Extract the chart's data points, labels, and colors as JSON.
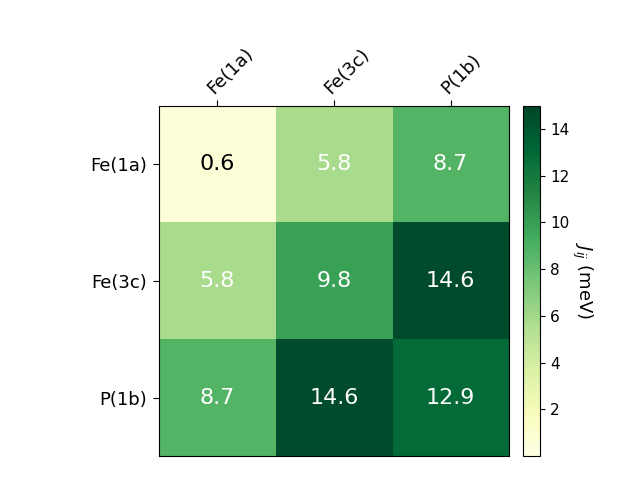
{
  "labels": [
    "Fe(1a)",
    "Fe(3c)",
    "P(1b)"
  ],
  "matrix": [
    [
      0.6,
      5.8,
      8.7
    ],
    [
      5.8,
      9.8,
      14.6
    ],
    [
      8.7,
      14.6,
      12.9
    ]
  ],
  "cmap": "YlGn",
  "vmin": 0,
  "vmax": 15,
  "colorbar_label": "$J_{ij}$ (meV)",
  "colorbar_ticks": [
    2,
    4,
    6,
    8,
    10,
    12,
    14
  ],
  "text_threshold": 4.0,
  "figsize": [
    6.4,
    4.8
  ],
  "dpi": 100,
  "annotation_fontsize": 16,
  "label_fontsize": 13
}
